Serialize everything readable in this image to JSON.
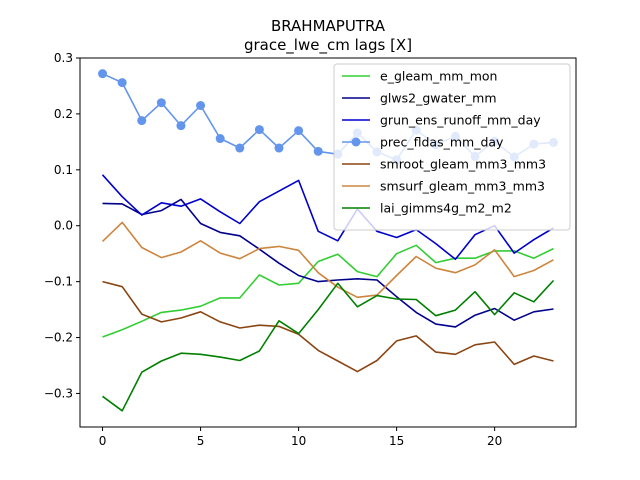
{
  "chart_data": {
    "type": "line",
    "title": "BRAHMAPUTRA",
    "subtitle": "grace_lwe_cm lags [X]",
    "xlabel": "",
    "ylabel": "",
    "xlim": [
      -1.15,
      24.15
    ],
    "ylim": [
      -0.36,
      0.3
    ],
    "xticks": [
      0,
      5,
      10,
      15,
      20
    ],
    "xtick_labels": [
      "0",
      "5",
      "10",
      "15",
      "20"
    ],
    "yticks": [
      -0.3,
      -0.2,
      -0.1,
      0.0,
      0.1,
      0.2,
      0.3
    ],
    "ytick_labels": [
      "−0.3",
      "−0.2",
      "−0.1",
      "0.0",
      "0.1",
      "0.2",
      "0.3"
    ],
    "grid": false,
    "legend_position": "top-right",
    "x": [
      0,
      1,
      2,
      3,
      4,
      5,
      6,
      7,
      8,
      9,
      10,
      11,
      12,
      13,
      14,
      15,
      16,
      17,
      18,
      19,
      20,
      21,
      22,
      23
    ],
    "series": [
      {
        "name": "e_gleam_mm_mon",
        "color": "#32cd32",
        "marker": false,
        "values": [
          -0.199,
          -0.186,
          -0.171,
          -0.155,
          -0.151,
          -0.144,
          -0.129,
          -0.129,
          -0.088,
          -0.106,
          -0.103,
          -0.064,
          -0.051,
          -0.082,
          -0.091,
          -0.05,
          -0.035,
          -0.066,
          -0.058,
          -0.058,
          -0.045,
          -0.045,
          -0.058,
          -0.041
        ]
      },
      {
        "name": "glws2_gwater_mm",
        "color": "#00008b",
        "marker": false,
        "values": [
          0.04,
          0.039,
          0.02,
          0.027,
          0.047,
          0.004,
          -0.012,
          -0.018,
          -0.042,
          -0.067,
          -0.089,
          -0.1,
          -0.097,
          -0.095,
          -0.097,
          -0.127,
          -0.155,
          -0.176,
          -0.181,
          -0.16,
          -0.148,
          -0.169,
          -0.154,
          -0.149
        ]
      },
      {
        "name": "grun_ens_runoff_mm_day",
        "color": "#0000cd",
        "marker": false,
        "values": [
          0.091,
          0.052,
          0.019,
          0.041,
          0.035,
          0.048,
          0.025,
          0.004,
          0.043,
          0.062,
          0.081,
          -0.01,
          -0.027,
          0.03,
          -0.01,
          -0.021,
          -0.007,
          -0.032,
          -0.06,
          -0.016,
          0.0,
          -0.049,
          -0.025,
          -0.004
        ]
      },
      {
        "name": "prec_fldas_mm_day",
        "color": "#6495ed",
        "marker": true,
        "values": [
          0.272,
          0.256,
          0.188,
          0.22,
          0.179,
          0.215,
          0.156,
          0.139,
          0.172,
          0.139,
          0.17,
          0.133,
          0.128,
          0.166,
          0.132,
          0.118,
          0.171,
          0.145,
          0.16,
          0.124,
          0.151,
          0.123,
          0.146,
          0.149
        ]
      },
      {
        "name": "smroot_gleam_mm3_mm3",
        "color": "#8b4513",
        "marker": false,
        "values": [
          -0.1,
          -0.109,
          -0.158,
          -0.172,
          -0.165,
          -0.154,
          -0.172,
          -0.183,
          -0.178,
          -0.18,
          -0.194,
          -0.223,
          -0.242,
          -0.261,
          -0.241,
          -0.206,
          -0.197,
          -0.226,
          -0.23,
          -0.213,
          -0.208,
          -0.248,
          -0.233,
          -0.242
        ]
      },
      {
        "name": "smsurf_gleam_mm3_mm3",
        "color": "#cd853f",
        "marker": false,
        "values": [
          -0.028,
          0.006,
          -0.039,
          -0.057,
          -0.047,
          -0.027,
          -0.049,
          -0.059,
          -0.041,
          -0.037,
          -0.044,
          -0.084,
          -0.11,
          -0.128,
          -0.124,
          -0.089,
          -0.055,
          -0.076,
          -0.084,
          -0.07,
          -0.043,
          -0.091,
          -0.08,
          -0.061
        ]
      },
      {
        "name": "lai_gimms4g_m2_m2",
        "color": "#008000",
        "marker": false,
        "values": [
          -0.305,
          -0.331,
          -0.262,
          -0.242,
          -0.228,
          -0.23,
          -0.235,
          -0.241,
          -0.224,
          -0.17,
          -0.193,
          -0.15,
          -0.103,
          -0.145,
          -0.125,
          -0.131,
          -0.132,
          -0.161,
          -0.151,
          -0.118,
          -0.159,
          -0.12,
          -0.136,
          -0.098
        ]
      }
    ]
  }
}
